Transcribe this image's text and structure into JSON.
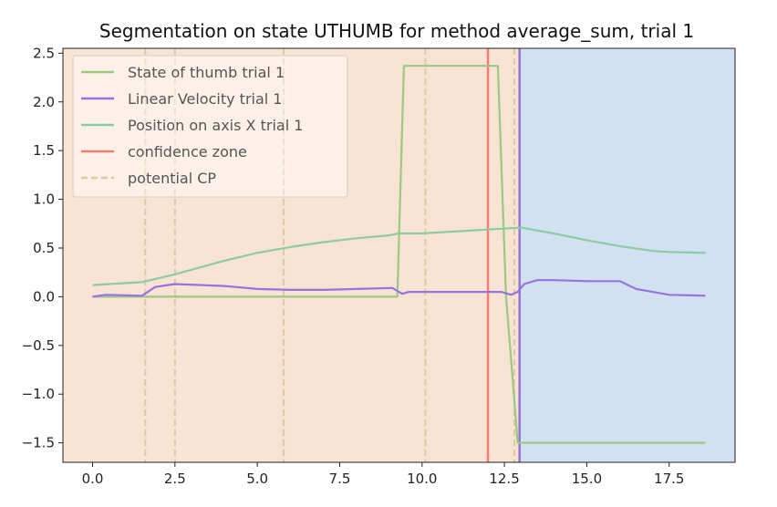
{
  "chart_data": {
    "type": "line",
    "title": "Segmentation on state UTHUMB for method average_sum, trial 1",
    "xlabel": "",
    "ylabel": "",
    "xlim": [
      -0.9,
      19.5
    ],
    "ylim": [
      -1.7,
      2.55
    ],
    "xticks": [
      0.0,
      2.5,
      5.0,
      7.5,
      10.0,
      12.5,
      15.0,
      17.5
    ],
    "xtick_labels": [
      "0.0",
      "2.5",
      "5.0",
      "7.5",
      "10.0",
      "12.5",
      "15.0",
      "17.5"
    ],
    "yticks": [
      -1.5,
      -1.0,
      -0.5,
      0.0,
      0.5,
      1.0,
      1.5,
      2.0,
      2.5
    ],
    "ytick_labels": [
      "−1.5",
      "−1.0",
      "−0.5",
      "0.0",
      "0.5",
      "1.0",
      "1.5",
      "2.0",
      "2.5"
    ],
    "grid": false,
    "legend_position": "top-left",
    "regions": [
      {
        "x0": -0.9,
        "x1": 12.95,
        "color": "#f9e3d5"
      },
      {
        "x0": 12.95,
        "x1": 19.5,
        "color": "#d2e1f1"
      }
    ],
    "series": [
      {
        "name": "State of thumb trial 1",
        "color": "#9bc982",
        "x": [
          0,
          9.25,
          9.45,
          12.3,
          12.55,
          12.8,
          12.9,
          13.0,
          18.6
        ],
        "y": [
          0,
          0,
          2.37,
          2.37,
          0.0,
          -1.05,
          -1.5,
          -1.5,
          -1.5
        ]
      },
      {
        "name": "Linear Velocity trial 1",
        "color": "#9674dd",
        "x": [
          0,
          0.4,
          1.5,
          1.9,
          2.5,
          4,
          5,
          6,
          7,
          8,
          9.1,
          9.4,
          9.6,
          10,
          12,
          12.4,
          12.7,
          12.9,
          13.1,
          13.5,
          14,
          15,
          16,
          16.5,
          17,
          17.5,
          18.6
        ],
        "y": [
          0.0,
          0.02,
          0.01,
          0.1,
          0.13,
          0.11,
          0.08,
          0.07,
          0.07,
          0.08,
          0.09,
          0.03,
          0.05,
          0.05,
          0.05,
          0.05,
          0.02,
          0.05,
          0.13,
          0.17,
          0.17,
          0.16,
          0.16,
          0.08,
          0.05,
          0.02,
          0.01
        ]
      },
      {
        "name": "Position on axis X trial 1",
        "color": "#8ccca0",
        "x": [
          0,
          1.5,
          2.5,
          4,
          5,
          6,
          7,
          8,
          9,
          9.3,
          10,
          11,
          12,
          13,
          14,
          15,
          16,
          17,
          17.5,
          18.6
        ],
        "y": [
          0.12,
          0.15,
          0.23,
          0.37,
          0.45,
          0.51,
          0.56,
          0.6,
          0.63,
          0.65,
          0.65,
          0.67,
          0.69,
          0.71,
          0.65,
          0.58,
          0.52,
          0.47,
          0.46,
          0.45
        ]
      }
    ],
    "vlines": [
      {
        "name": "confidence zone",
        "x": [
          12.0
        ],
        "color": "#f07e70",
        "style": "solid"
      },
      {
        "name": "",
        "x": [
          12.96
        ],
        "color": "#9674dd",
        "style": "solid"
      },
      {
        "name": "potential CP",
        "x": [
          1.6,
          2.5,
          5.8,
          10.1,
          12.8
        ],
        "color": "#d4cea4",
        "style": "dashed"
      }
    ],
    "legend": [
      {
        "label": "State of thumb trial 1",
        "color": "#9bc982",
        "style": "solid"
      },
      {
        "label": "Linear Velocity trial 1",
        "color": "#9674dd",
        "style": "solid"
      },
      {
        "label": "Position on axis X trial 1",
        "color": "#8ccca0",
        "style": "solid"
      },
      {
        "label": "confidence zone",
        "color": "#f07e70",
        "style": "solid"
      },
      {
        "label": "potential CP",
        "color": "#d4cea4",
        "style": "dashed"
      }
    ]
  }
}
